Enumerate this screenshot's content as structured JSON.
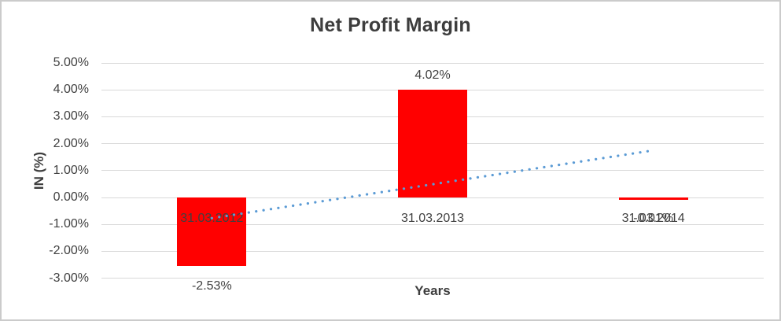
{
  "chart_data": {
    "type": "bar",
    "title": "Net Profit Margin",
    "xlabel": "Years",
    "ylabel": "IN (%)",
    "categories": [
      "31.03.2012",
      "31.03.2013",
      "31.03.2014"
    ],
    "values": [
      -2.53,
      4.02,
      -0.01
    ],
    "data_labels": [
      "-2.53%",
      "4.02%",
      "-0.01%"
    ],
    "y_ticks": [
      {
        "v": 5,
        "label": "5.00%"
      },
      {
        "v": 4,
        "label": "4.00%"
      },
      {
        "v": 3,
        "label": "3.00%"
      },
      {
        "v": 2,
        "label": "2.00%"
      },
      {
        "v": 1,
        "label": "1.00%"
      },
      {
        "v": 0,
        "label": "0.00%"
      },
      {
        "v": -1,
        "label": "-1.00%"
      },
      {
        "v": -2,
        "label": "-2.00%"
      },
      {
        "v": -3,
        "label": "-3.00%"
      }
    ],
    "ylim": [
      -3,
      5
    ],
    "grid": true,
    "legend": "none",
    "bar_color": "#FF0000",
    "gridline_color": "#d9d9d9",
    "text_color": "#404040",
    "trendline": {
      "type": "linear",
      "style": "dotted",
      "color": "#5B9BD5",
      "start_value": -0.77,
      "end_value": 1.75
    }
  }
}
